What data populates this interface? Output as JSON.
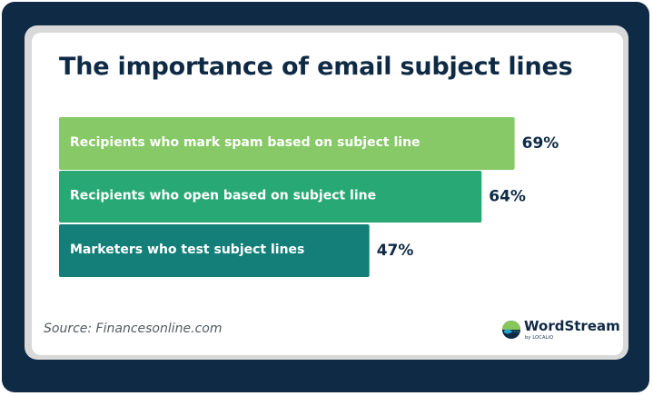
{
  "title": "The importance of email subject lines",
  "source": "Source: Financesonline.com",
  "brand": {
    "name": "WordStream",
    "sub": "by LOCALiQ",
    "colors": {
      "navy": "#0f2a45",
      "teal": "#1e8b6e",
      "green": "#88c65c"
    }
  },
  "chart_data": {
    "type": "bar",
    "orientation": "horizontal",
    "title": "The importance of email subject lines",
    "categories": [
      "Recipients who mark spam based on subject line",
      "Recipients who open based on subject line",
      "Marketers who test subject lines"
    ],
    "values": [
      69,
      64,
      47
    ],
    "value_labels": [
      "69%",
      "64%",
      "47%"
    ],
    "colors": [
      "#86c966",
      "#27a874",
      "#137f78"
    ],
    "xlim": [
      0,
      100
    ],
    "grid": false,
    "legend": "none"
  }
}
